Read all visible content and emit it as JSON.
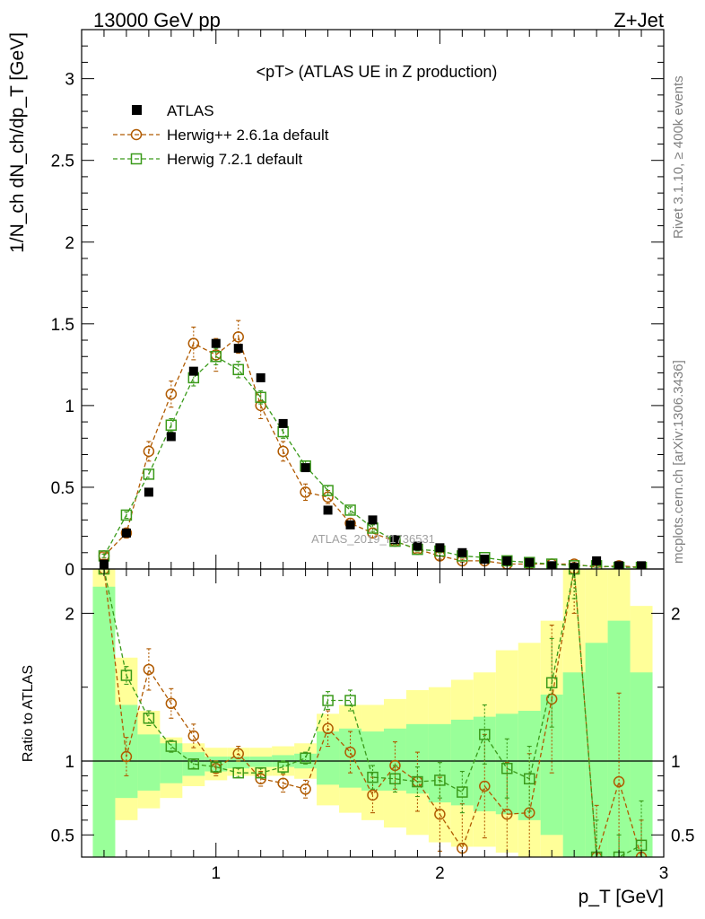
{
  "header": {
    "left": "13000 GeV pp",
    "right": "Z+Jet"
  },
  "side": {
    "rivet": "Rivet 3.1.10, ≥ 400k events",
    "mcplots": "mcplots.cern.ch [arXiv:1306.3436]"
  },
  "watermark": "ATLAS_2019_I1736531",
  "colors": {
    "atlas": "#000000",
    "herwig_old": "#b05a00",
    "herwig_new": "#3a9a1a",
    "band_yellow": "#ffff99",
    "band_green": "#99ff99"
  },
  "chart_data": [
    {
      "type": "scatter",
      "title": "<pT> (ATLAS UE in Z production)",
      "ylabel": "1/N_ch dN_ch/dp_T [GeV]",
      "xlim": [
        0.4,
        3.0
      ],
      "ylim": [
        0,
        3.3
      ],
      "yticks": [
        "0",
        "0.5",
        "1",
        "1.5",
        "2",
        "2.5",
        "3"
      ],
      "legend_position": "top-left",
      "x": [
        0.5,
        0.6,
        0.7,
        0.8,
        0.9,
        1.0,
        1.1,
        1.2,
        1.3,
        1.4,
        1.5,
        1.6,
        1.7,
        1.8,
        1.9,
        2.0,
        2.1,
        2.2,
        2.3,
        2.4,
        2.5,
        2.6,
        2.7,
        2.8,
        2.9
      ],
      "series": [
        {
          "name": "ATLAS",
          "marker": "filled-square",
          "color": "#000000",
          "values": [
            0.03,
            0.22,
            0.47,
            0.81,
            1.21,
            1.38,
            1.35,
            1.17,
            0.89,
            0.62,
            0.36,
            0.27,
            0.3,
            0.18,
            0.14,
            0.13,
            0.1,
            0.06,
            0.05,
            0.04,
            0.02,
            0.01,
            0.05,
            0.02,
            0.02
          ]
        },
        {
          "name": "Herwig++ 2.6.1a default",
          "marker": "open-circle",
          "color": "#b05a00",
          "values": [
            0.08,
            0.22,
            0.72,
            1.07,
            1.38,
            1.31,
            1.42,
            1.0,
            0.72,
            0.47,
            0.44,
            0.28,
            0.22,
            0.17,
            0.12,
            0.08,
            0.05,
            0.05,
            0.03,
            0.03,
            0.03,
            0.03,
            0.01,
            0.02,
            0.01
          ],
          "errors": [
            0.02,
            0.03,
            0.06,
            0.08,
            0.1,
            0.1,
            0.1,
            0.08,
            0.06,
            0.05,
            0.04,
            0.03,
            0.03,
            0.02,
            0.02,
            0.02,
            0.01,
            0.01,
            0.01,
            0.01,
            0.01,
            0.01,
            0.01,
            0.01,
            0.01
          ]
        },
        {
          "name": "Herwig 7.2.1 default",
          "marker": "open-square",
          "color": "#3a9a1a",
          "values": [
            0.08,
            0.33,
            0.58,
            0.88,
            1.17,
            1.3,
            1.22,
            1.05,
            0.84,
            0.63,
            0.48,
            0.36,
            0.25,
            0.17,
            0.12,
            0.11,
            0.08,
            0.07,
            0.05,
            0.04,
            0.03,
            0.02,
            0.02,
            0.01,
            0.01
          ],
          "errors": [
            0.01,
            0.02,
            0.03,
            0.04,
            0.05,
            0.05,
            0.05,
            0.04,
            0.04,
            0.03,
            0.03,
            0.02,
            0.02,
            0.02,
            0.01,
            0.01,
            0.01,
            0.01,
            0.01,
            0.01,
            0.01,
            0.01,
            0.01,
            0.01,
            0.01
          ]
        }
      ]
    },
    {
      "type": "line",
      "ylabel": "Ratio to ATLAS",
      "xlabel": "p_T [GeV]",
      "xlim": [
        0.4,
        3.0
      ],
      "ylim": [
        0.35,
        2.3
      ],
      "xticks": [
        "1",
        "2",
        "3"
      ],
      "yticks": [
        "0.5",
        "1",
        "2"
      ],
      "reference_line": 1,
      "bands": {
        "edges": [
          0.45,
          0.55,
          0.65,
          0.75,
          0.85,
          0.95,
          1.05,
          1.15,
          1.25,
          1.35,
          1.45,
          1.55,
          1.65,
          1.75,
          1.85,
          1.95,
          2.05,
          2.15,
          2.25,
          2.35,
          2.45,
          2.55,
          2.65,
          2.75,
          2.85,
          2.95
        ],
        "green_upper": [
          2.18,
          1.38,
          1.18,
          1.12,
          1.06,
          1.03,
          1.03,
          1.03,
          1.04,
          1.05,
          1.2,
          1.22,
          1.2,
          1.22,
          1.25,
          1.25,
          1.28,
          1.3,
          1.32,
          1.34,
          1.45,
          1.6,
          1.8,
          1.95,
          1.6
        ],
        "green_lower": [
          0.35,
          0.75,
          0.8,
          0.85,
          0.9,
          0.93,
          0.95,
          0.96,
          0.96,
          0.95,
          0.84,
          0.82,
          0.8,
          0.8,
          0.78,
          0.72,
          0.7,
          0.66,
          0.64,
          0.6,
          0.5,
          0.35,
          0.35,
          0.35,
          0.35
        ],
        "yellow_upper": [
          2.3,
          1.7,
          1.34,
          1.16,
          1.12,
          1.09,
          1.09,
          1.09,
          1.1,
          1.12,
          1.32,
          1.38,
          1.38,
          1.42,
          1.48,
          1.5,
          1.55,
          1.6,
          1.75,
          1.8,
          1.95,
          2.3,
          2.3,
          2.3,
          2.05
        ],
        "yellow_lower": [
          0.35,
          0.6,
          0.68,
          0.75,
          0.83,
          0.87,
          0.9,
          0.9,
          0.9,
          0.88,
          0.7,
          0.65,
          0.6,
          0.55,
          0.5,
          0.45,
          0.42,
          0.42,
          0.38,
          0.35,
          0.35,
          0.35,
          0.35,
          0.35,
          0.35
        ]
      },
      "x": [
        0.5,
        0.6,
        0.7,
        0.8,
        0.9,
        1.0,
        1.1,
        1.2,
        1.3,
        1.4,
        1.5,
        1.6,
        1.7,
        1.8,
        1.9,
        2.0,
        2.1,
        2.2,
        2.3,
        2.4,
        2.5,
        2.6,
        2.7,
        2.8,
        2.9
      ],
      "series": [
        {
          "name": "Herwig++ 2.6.1a default",
          "marker": "open-circle",
          "color": "#b05a00",
          "values": [
            2.4,
            1.03,
            1.62,
            1.39,
            1.17,
            0.95,
            1.05,
            0.88,
            0.85,
            0.81,
            1.22,
            1.06,
            0.77,
            0.97,
            0.86,
            0.64,
            0.41,
            0.83,
            0.64,
            0.65,
            1.42,
            2.5,
            0.2,
            0.86,
            0.1
          ],
          "errors": [
            0.1,
            0.13,
            0.14,
            0.1,
            0.08,
            0.05,
            0.05,
            0.05,
            0.06,
            0.06,
            0.12,
            0.14,
            0.12,
            0.16,
            0.2,
            0.25,
            0.3,
            0.35,
            0.35,
            0.4,
            0.5,
            0.5,
            0.5,
            0.6,
            0.5
          ]
        },
        {
          "name": "Herwig 7.2.1 default",
          "marker": "open-square",
          "color": "#3a9a1a",
          "values": [
            2.5,
            1.58,
            1.29,
            1.1,
            0.98,
            0.96,
            0.92,
            0.92,
            0.96,
            1.02,
            1.41,
            1.41,
            0.89,
            0.88,
            0.86,
            0.87,
            0.79,
            1.18,
            0.95,
            0.88,
            1.53,
            2.5,
            0.2,
            0.1,
            0.43
          ],
          "errors": [
            0.05,
            0.06,
            0.05,
            0.04,
            0.03,
            0.03,
            0.03,
            0.03,
            0.04,
            0.04,
            0.06,
            0.07,
            0.08,
            0.09,
            0.1,
            0.12,
            0.14,
            0.2,
            0.2,
            0.22,
            0.3,
            0.4,
            0.4,
            0.4,
            0.3
          ]
        }
      ]
    }
  ]
}
